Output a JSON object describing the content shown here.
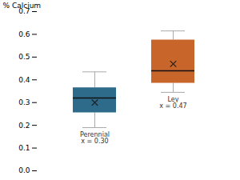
{
  "chart_data": {
    "type": "box",
    "categories": [
      "Perennial",
      "Ley"
    ],
    "colors": [
      "#2e6b8a",
      "#c8652b"
    ],
    "median": [
      0.32,
      0.44
    ],
    "q1": [
      0.255,
      0.385
    ],
    "q3": [
      0.365,
      0.575
    ],
    "whislo": [
      0.19,
      0.345
    ],
    "whishi": [
      0.435,
      0.615
    ],
    "mean": [
      0.3,
      0.47
    ],
    "marker": "x",
    "annotations": [
      "Perennial\nx = 0.30",
      "Ley\nx = 0.47"
    ],
    "ylabel": "% Calcium",
    "ylim": [
      0,
      0.7
    ],
    "yticks": [
      {
        "value": 0,
        "label": "0.0"
      },
      0.1,
      0.2,
      0.3,
      0.4,
      0.5,
      0.6,
      0.7
    ],
    "tick_labels": "y",
    "grid": false
  }
}
